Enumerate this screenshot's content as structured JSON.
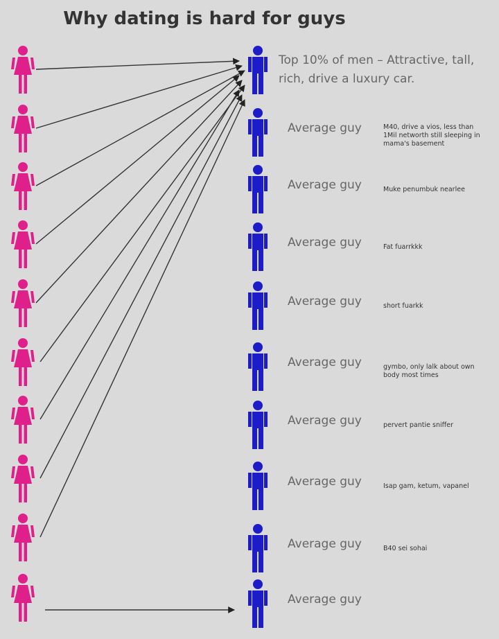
{
  "title": "Why dating is hard for guys",
  "men": [
    {
      "label": "Top 10% of men – Attractive, tall, rich, drive a luxury car."
    },
    {
      "label": "Average guy",
      "note": "M40, drive a vios, less than 1Mil networth still sleeping in mama's basement"
    },
    {
      "label": "Average guy",
      "note": "Muke penumbuk nearlee"
    },
    {
      "label": "Average guy",
      "note": "Fat fuarrkkk"
    },
    {
      "label": "Average guy",
      "note": "short fuarkk"
    },
    {
      "label": "Average guy",
      "note": "gymbo, only lalk about own body most times"
    },
    {
      "label": "Average guy",
      "note": "pervert pantie sniffer"
    },
    {
      "label": "Average guy",
      "note": "Isap gam, ketum, vapanel"
    },
    {
      "label": "Average guy",
      "note": "B40 sei sohai"
    },
    {
      "label": "Average guy"
    }
  ]
}
